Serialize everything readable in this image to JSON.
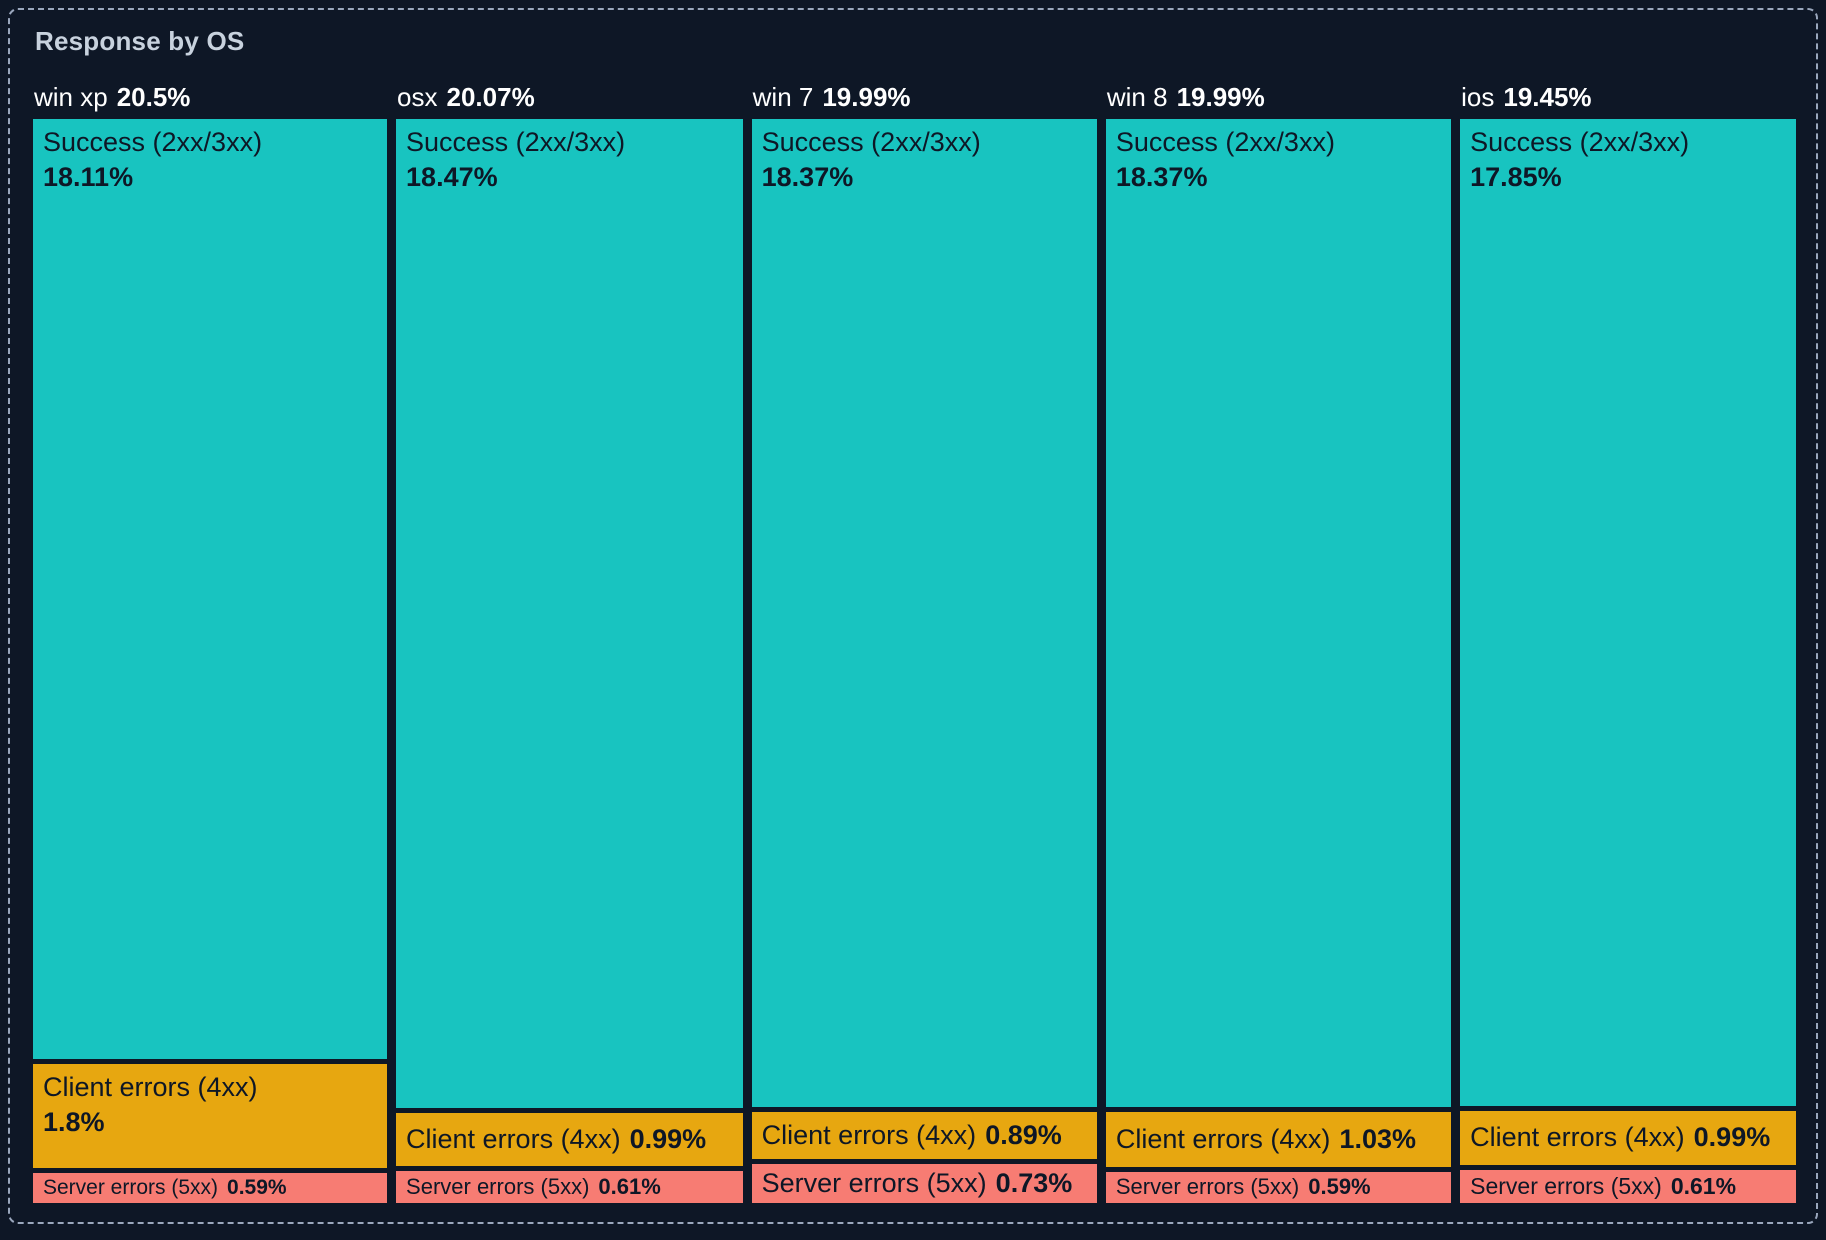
{
  "panel": {
    "title": "Response by OS"
  },
  "chart_data": {
    "type": "treemap",
    "title": "Response by OS",
    "orientation": "columns-stacked-percent",
    "legend": "none",
    "colors": {
      "success": "#18c4c0",
      "client_errors": "#e7a710",
      "server_errors": "#f77c73",
      "background": "#0e1726",
      "frame_border": "#9aa7bd",
      "title_text": "#c8d2de",
      "header_text": "#ffffff",
      "segment_text": "#0e1726"
    },
    "columns": [
      {
        "os": "win xp",
        "total_display": "20.5%",
        "total_value": 20.5,
        "segments": [
          {
            "label": "Success (2xx/3xx)",
            "display": "18.11%",
            "value": 18.11
          },
          {
            "label": "Client errors (4xx)",
            "display": "1.8%",
            "value": 1.8
          },
          {
            "label": "Server errors (5xx)",
            "display": "0.59%",
            "value": 0.59
          }
        ]
      },
      {
        "os": "osx",
        "total_display": "20.07%",
        "total_value": 20.07,
        "segments": [
          {
            "label": "Success (2xx/3xx)",
            "display": "18.47%",
            "value": 18.47
          },
          {
            "label": "Client errors (4xx)",
            "display": "0.99%",
            "value": 0.99
          },
          {
            "label": "Server errors (5xx)",
            "display": "0.61%",
            "value": 0.61
          }
        ]
      },
      {
        "os": "win 7",
        "total_display": "19.99%",
        "total_value": 19.99,
        "segments": [
          {
            "label": "Success (2xx/3xx)",
            "display": "18.37%",
            "value": 18.37
          },
          {
            "label": "Client errors (4xx)",
            "display": "0.89%",
            "value": 0.89
          },
          {
            "label": "Server errors (5xx)",
            "display": "0.73%",
            "value": 0.73
          }
        ]
      },
      {
        "os": "win 8",
        "total_display": "19.99%",
        "total_value": 19.99,
        "segments": [
          {
            "label": "Success (2xx/3xx)",
            "display": "18.37%",
            "value": 18.37
          },
          {
            "label": "Client errors (4xx)",
            "display": "1.03%",
            "value": 1.03
          },
          {
            "label": "Server errors (5xx)",
            "display": "0.59%",
            "value": 0.59
          }
        ]
      },
      {
        "os": "ios",
        "total_display": "19.45%",
        "total_value": 19.45,
        "segments": [
          {
            "label": "Success (2xx/3xx)",
            "display": "17.85%",
            "value": 17.85
          },
          {
            "label": "Client errors (4xx)",
            "display": "0.99%",
            "value": 0.99
          },
          {
            "label": "Server errors (5xx)",
            "display": "0.61%",
            "value": 0.61
          }
        ]
      }
    ]
  }
}
